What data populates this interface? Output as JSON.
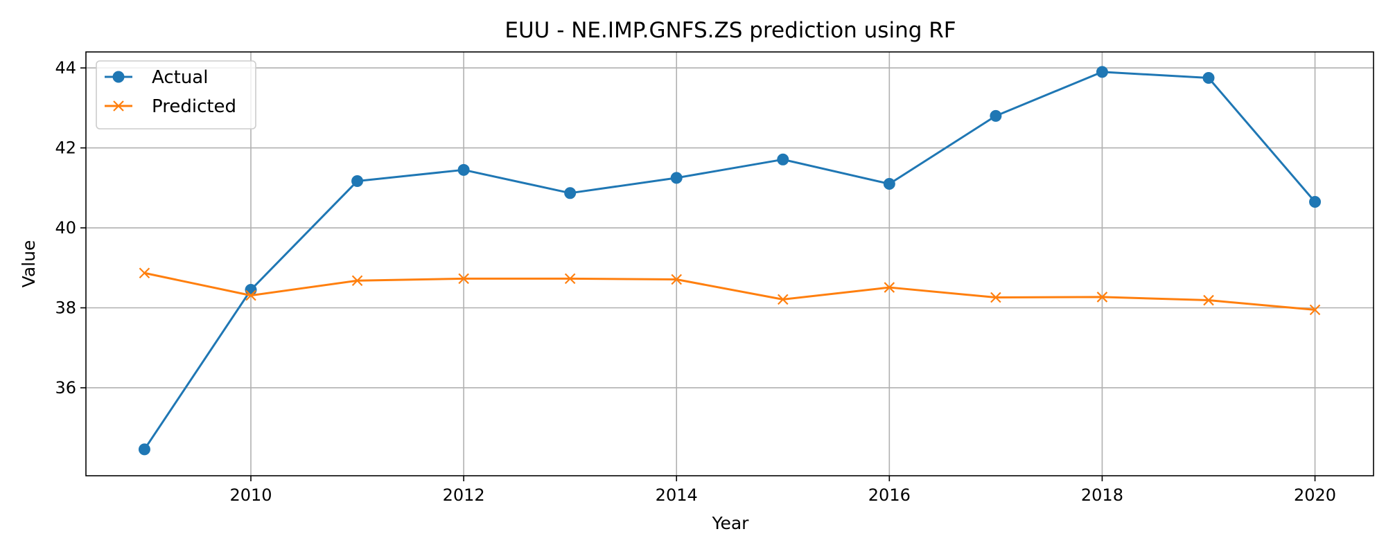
{
  "chart_data": {
    "type": "line",
    "title": "EUU - NE.IMP.GNFS.ZS prediction using RF",
    "xlabel": "Year",
    "ylabel": "Value",
    "x": [
      2009,
      2010,
      2011,
      2012,
      2013,
      2014,
      2015,
      2016,
      2017,
      2018,
      2019,
      2020
    ],
    "xlim": [
      2008.45,
      2020.55
    ],
    "ylim": [
      33.8,
      44.4
    ],
    "x_ticks": [
      2010,
      2012,
      2014,
      2016,
      2018,
      2020
    ],
    "y_ticks": [
      36,
      38,
      40,
      42,
      44
    ],
    "grid": true,
    "legend_position": "upper-left",
    "series": [
      {
        "name": "Actual",
        "marker": "circle",
        "color": "#1f77b4",
        "values": [
          34.46,
          38.45,
          41.17,
          41.45,
          40.87,
          41.25,
          41.71,
          41.1,
          42.8,
          43.9,
          43.75,
          40.65
        ]
      },
      {
        "name": "Predicted",
        "marker": "x",
        "color": "#ff7f0e",
        "values": [
          38.87,
          38.31,
          38.68,
          38.73,
          38.73,
          38.71,
          38.21,
          38.51,
          38.26,
          38.27,
          38.19,
          37.95
        ]
      }
    ]
  }
}
